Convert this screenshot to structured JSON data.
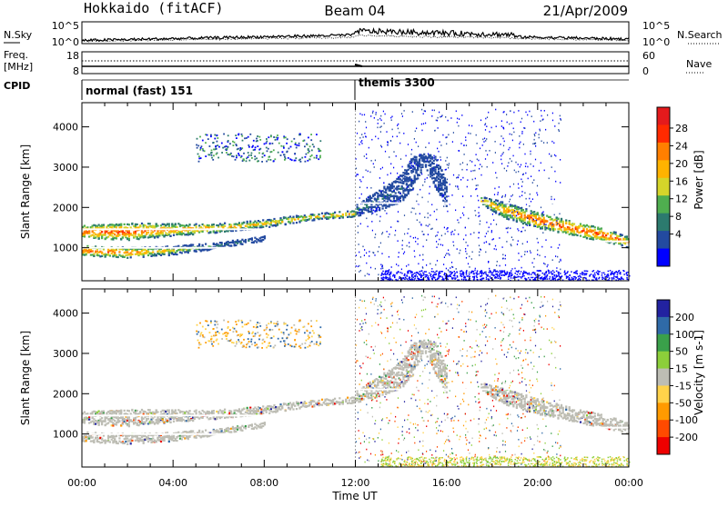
{
  "header": {
    "station": "Hokkaido (fitACF)",
    "beam": "Beam 04",
    "date": "21/Apr/2009"
  },
  "strip_labels": {
    "nsky": "N.Sky",
    "nsearch": "N.Search",
    "nsky_top": "10^5",
    "nsky_bottom": "10^0",
    "freq": "Freq.",
    "freq_unit": "[MHz]",
    "freq_top": "18",
    "freq_bottom": "8",
    "nave": "Nave",
    "nave_top": "60",
    "nave_bottom": "0",
    "cpid": "CPID",
    "cpid_mode1": "normal (fast) 151",
    "cpid_mode2": "themis 3300"
  },
  "power_colorbar": {
    "label": "Power [dB]",
    "ticks": [
      "28",
      "24",
      "20",
      "16",
      "12",
      "8",
      "4"
    ],
    "colors": [
      "#e41a1c",
      "#ff2a00",
      "#ff7f00",
      "#ffb300",
      "#d5d52a",
      "#4fae4f",
      "#2c7a6e",
      "#234aa0",
      "#0000ff"
    ]
  },
  "velocity_colorbar": {
    "label": "Velocity [m s-1]",
    "ticks": [
      "200",
      "100",
      "50",
      "15",
      "-15",
      "-50",
      "-100",
      "-200"
    ],
    "colors": [
      "#2222a0",
      "#2f6aa8",
      "#3aa04a",
      "#8ccf3a",
      "#bdbdb4",
      "#ffd24a",
      "#ff9a00",
      "#ff4a00",
      "#ee0000"
    ]
  },
  "axes": {
    "ylabel": "Slant Range [km]",
    "xlabel": "Time UT",
    "yticks": [
      "4000",
      "3000",
      "2000",
      "1000"
    ],
    "xticks": [
      "00:00",
      "04:00",
      "08:00",
      "12:00",
      "16:00",
      "20:00",
      "00:00"
    ]
  },
  "chart_data": [
    {
      "type": "heatmap",
      "title": "",
      "quantity": "Power",
      "unit": "dB",
      "xlabel": "",
      "ylabel": "Slant Range [km]",
      "xlim": [
        "00:00",
        "24:00"
      ],
      "ylim": [
        180,
        4600
      ],
      "color_range": [
        0,
        30
      ],
      "scatter_bands": [
        {
          "x": [
            0,
            2,
            4,
            6,
            8,
            10,
            12
          ],
          "range_center_km": [
            1420,
            1420,
            1470,
            1510,
            1620,
            1780,
            1870
          ],
          "range_width_km": [
            320,
            420,
            300,
            220,
            200,
            160,
            150
          ],
          "peak_power_db": [
            28,
            28,
            26,
            24,
            22,
            22,
            24
          ]
        },
        {
          "x": [
            0,
            2,
            4,
            6,
            8
          ],
          "range_center_km": [
            950,
            900,
            950,
            1080,
            1250
          ],
          "range_width_km": [
            250,
            260,
            220,
            150,
            120
          ],
          "peak_power_db": [
            28,
            26,
            20,
            12,
            8
          ]
        },
        {
          "x": [
            12,
            13,
            14,
            14.5,
            15,
            15.5,
            16
          ],
          "range_center_km": [
            1950,
            2200,
            2500,
            2900,
            3200,
            2900,
            2300
          ],
          "range_width_km": [
            300,
            500,
            700,
            800,
            300,
            800,
            600
          ],
          "peak_power_db": [
            14,
            10,
            8,
            6,
            6,
            6,
            8
          ]
        },
        {
          "x": [
            17.5,
            18.5,
            20,
            21.5,
            23,
            24
          ],
          "range_center_km": [
            2200,
            1950,
            1700,
            1500,
            1320,
            1150
          ],
          "range_width_km": [
            200,
            400,
            380,
            340,
            320,
            260
          ],
          "peak_power_db": [
            22,
            24,
            28,
            28,
            28,
            24
          ]
        }
      ]
    },
    {
      "type": "heatmap",
      "title": "",
      "quantity": "Velocity",
      "unit": "m s-1",
      "xlabel": "Time UT",
      "ylabel": "Slant Range [km]",
      "xlim": [
        "00:00",
        "24:00"
      ],
      "ylim": [
        180,
        4600
      ],
      "color_range": [
        -200,
        200
      ],
      "dominant_value": "ground scatter (-15 to 15 m/s)"
    }
  ]
}
